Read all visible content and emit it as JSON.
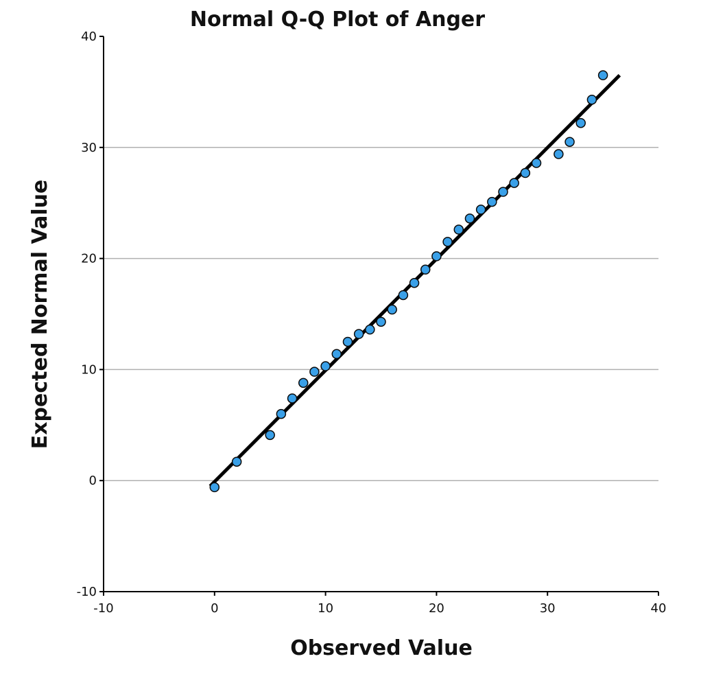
{
  "chart_data": {
    "type": "scatter",
    "title": "Normal Q-Q Plot of Anger",
    "xlabel": "Observed Value",
    "ylabel": "Expected Normal Value",
    "xlim": [
      -10,
      40
    ],
    "ylim": [
      -10,
      40
    ],
    "x_ticks": [
      "-10",
      "0",
      "10",
      "20",
      "30",
      "40"
    ],
    "y_ticks": [
      "-10",
      "0",
      "10",
      "20",
      "30",
      "40"
    ],
    "grid": "horizontal",
    "point_color": "#3aa0e8",
    "line_color": "#000000",
    "reference_line": {
      "x": [
        -0.4,
        36.5
      ],
      "y": [
        -0.5,
        36.5
      ]
    },
    "points": [
      {
        "x": 0,
        "y": -0.6
      },
      {
        "x": 2,
        "y": 1.7
      },
      {
        "x": 5,
        "y": 4.1
      },
      {
        "x": 6,
        "y": 6.0
      },
      {
        "x": 7,
        "y": 7.4
      },
      {
        "x": 8,
        "y": 8.8
      },
      {
        "x": 9,
        "y": 9.8
      },
      {
        "x": 10,
        "y": 10.3
      },
      {
        "x": 11,
        "y": 11.4
      },
      {
        "x": 12,
        "y": 12.5
      },
      {
        "x": 13,
        "y": 13.2
      },
      {
        "x": 14,
        "y": 13.6
      },
      {
        "x": 15,
        "y": 14.3
      },
      {
        "x": 16,
        "y": 15.4
      },
      {
        "x": 17,
        "y": 16.7
      },
      {
        "x": 18,
        "y": 17.8
      },
      {
        "x": 19,
        "y": 19.0
      },
      {
        "x": 20,
        "y": 20.2
      },
      {
        "x": 21,
        "y": 21.5
      },
      {
        "x": 22,
        "y": 22.6
      },
      {
        "x": 23,
        "y": 23.6
      },
      {
        "x": 24,
        "y": 24.4
      },
      {
        "x": 25,
        "y": 25.1
      },
      {
        "x": 26,
        "y": 26.0
      },
      {
        "x": 27,
        "y": 26.8
      },
      {
        "x": 28,
        "y": 27.7
      },
      {
        "x": 29,
        "y": 28.6
      },
      {
        "x": 31,
        "y": 29.4
      },
      {
        "x": 32,
        "y": 30.5
      },
      {
        "x": 33,
        "y": 32.2
      },
      {
        "x": 34,
        "y": 34.3
      },
      {
        "x": 35,
        "y": 36.5
      }
    ]
  }
}
